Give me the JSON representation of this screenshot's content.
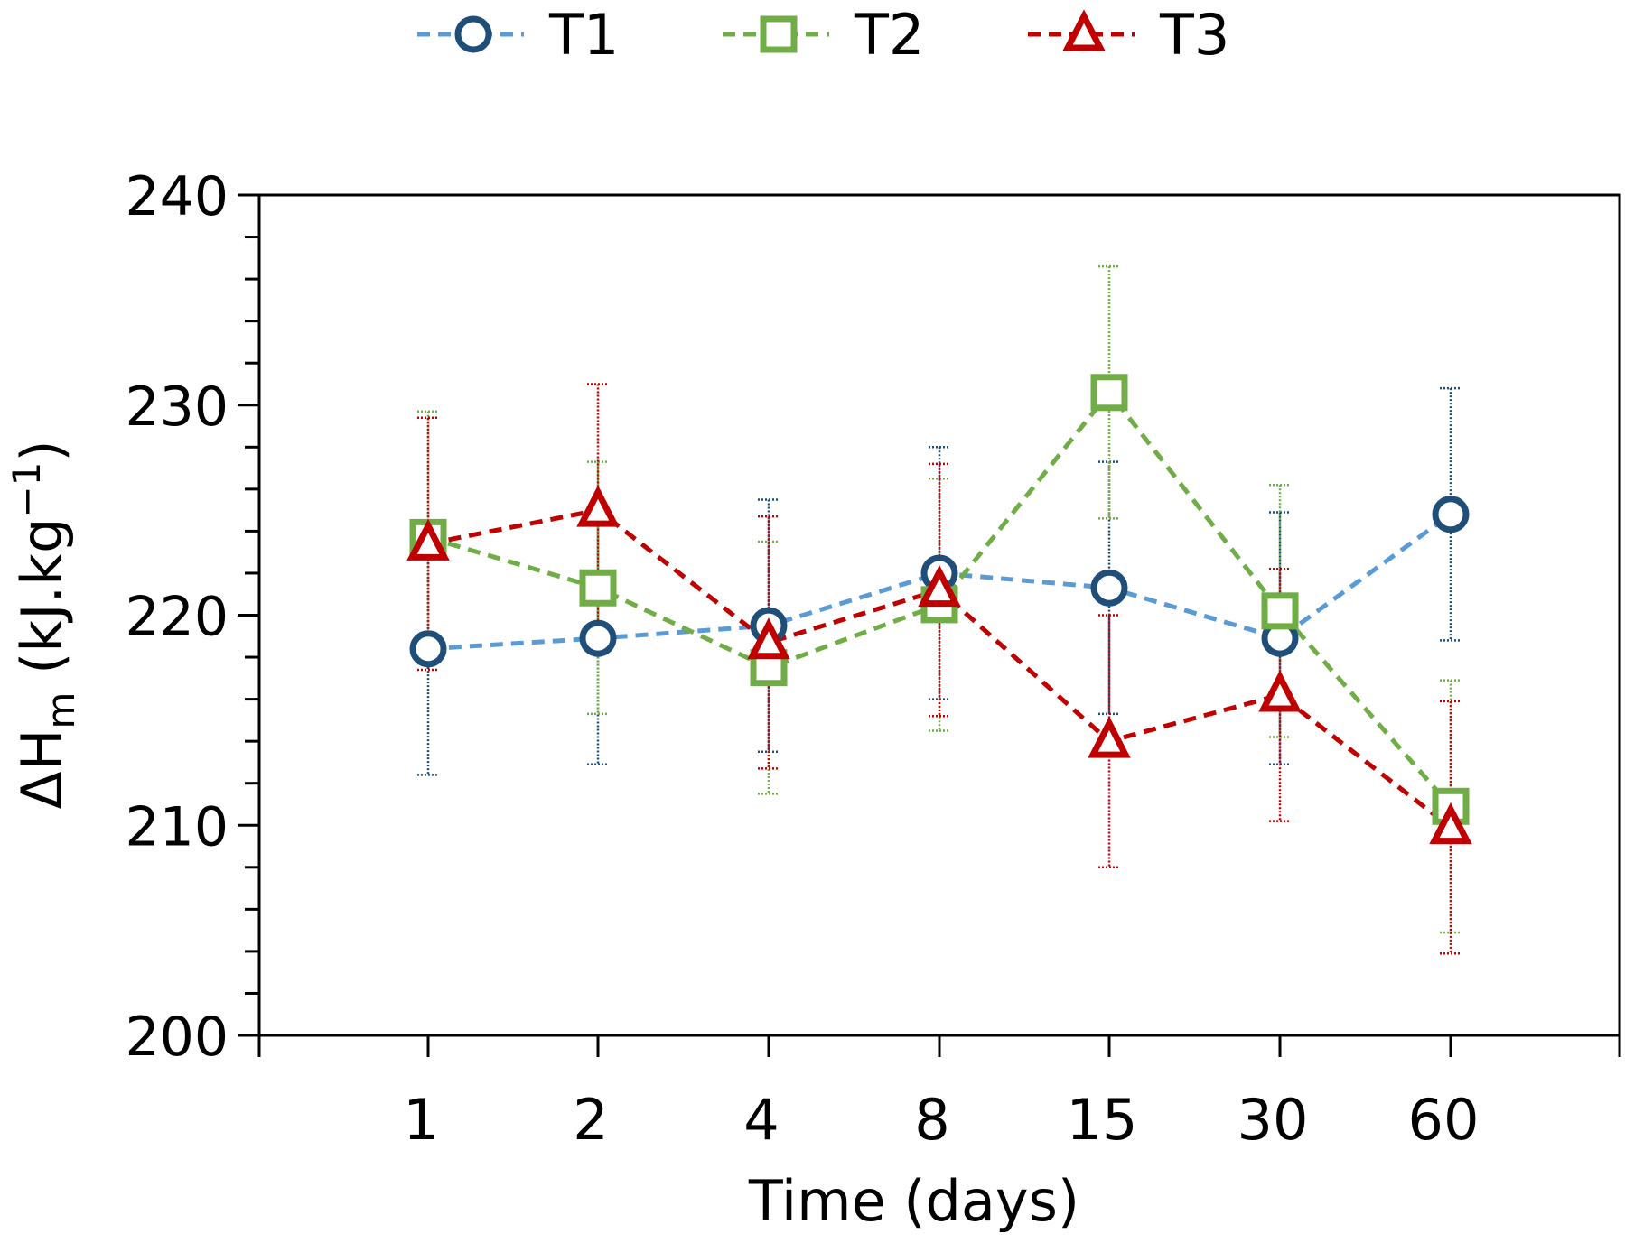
{
  "chart_data": {
    "type": "line",
    "xlabel": "Time (days)",
    "ylabel": {
      "prefix": "ΔH",
      "subscript": "m",
      "units": " (kJ.kg",
      "exponent": "−1",
      "close": ")"
    },
    "categories": [
      "1",
      "2",
      "4",
      "8",
      "15",
      "30",
      "60"
    ],
    "ylim": [
      200,
      240
    ],
    "yticks": [
      "200",
      "210",
      "220",
      "230",
      "240"
    ],
    "legend_position": "top",
    "grid": false,
    "series": [
      {
        "name": "T1",
        "marker": "circle",
        "line_color": "#5b9bd5",
        "marker_color": "#1f4e79",
        "values": [
          218.4,
          218.9,
          219.5,
          222.0,
          221.3,
          218.9,
          224.8
        ],
        "errors": [
          6.0,
          6.0,
          6.0,
          6.0,
          6.0,
          6.0,
          6.0
        ]
      },
      {
        "name": "T2",
        "marker": "square",
        "line_color": "#70ad47",
        "marker_color": "#70ad47",
        "values": [
          223.7,
          221.3,
          217.5,
          220.5,
          230.6,
          220.2,
          210.9
        ],
        "errors": [
          6.0,
          6.0,
          6.0,
          6.0,
          6.0,
          6.0,
          6.0
        ]
      },
      {
        "name": "T3",
        "marker": "triangle",
        "line_color": "#c00000",
        "marker_color": "#c00000",
        "values": [
          223.4,
          225.0,
          218.7,
          221.2,
          214.0,
          216.2,
          209.9
        ],
        "errors": [
          6.0,
          6.0,
          6.0,
          6.0,
          6.0,
          6.0,
          6.0
        ]
      }
    ]
  }
}
